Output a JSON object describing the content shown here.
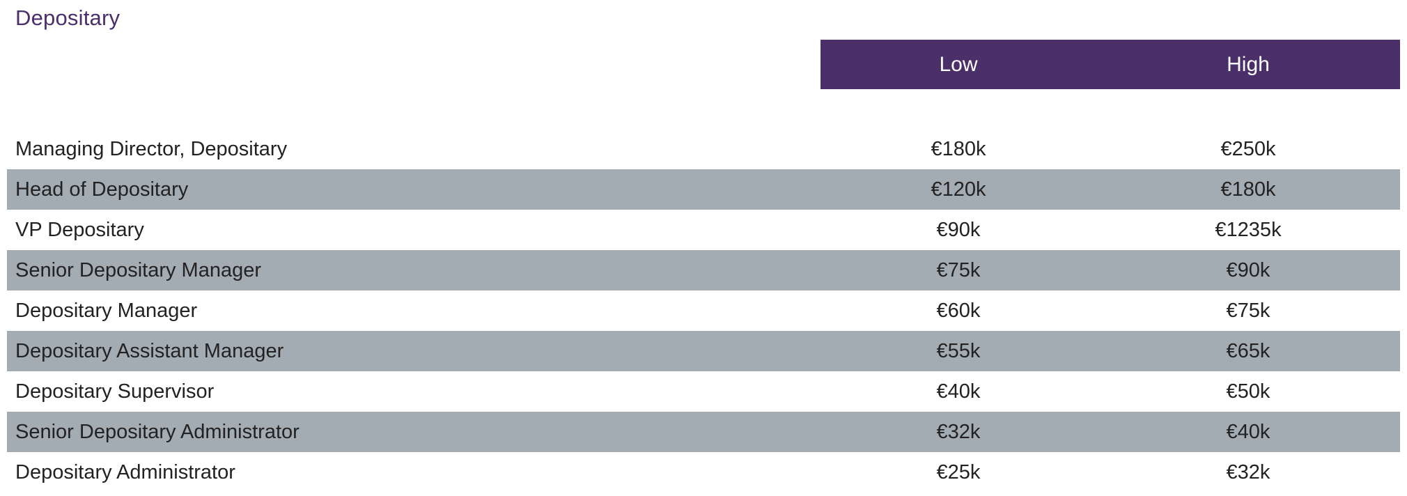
{
  "title": "Depositary",
  "header": {
    "low_label": "Low",
    "high_label": "High"
  },
  "rows": [
    {
      "title": "Managing Director, Depositary",
      "low": "€180k",
      "high": "€250k"
    },
    {
      "title": "Head of Depositary",
      "low": "€120k",
      "high": "€180k"
    },
    {
      "title": "VP Depositary",
      "low": "€90k",
      "high": "€1235k"
    },
    {
      "title": "Senior Depositary Manager",
      "low": "€75k",
      "high": "€90k"
    },
    {
      "title": "Depositary Manager",
      "low": "€60k",
      "high": "€75k"
    },
    {
      "title": "Depositary Assistant Manager",
      "low": "€55k",
      "high": "€65k"
    },
    {
      "title": "Depositary Supervisor",
      "low": "€40k",
      "high": "€50k"
    },
    {
      "title": "Senior Depositary Administrator",
      "low": "€32k",
      "high": "€40k"
    },
    {
      "title": "Depositary Administrator",
      "low": "€25k",
      "high": "€32k"
    }
  ],
  "colors": {
    "title": "#4b2e6b",
    "header_bg": "#4a2f69",
    "row_shade": "#a3abb3"
  }
}
